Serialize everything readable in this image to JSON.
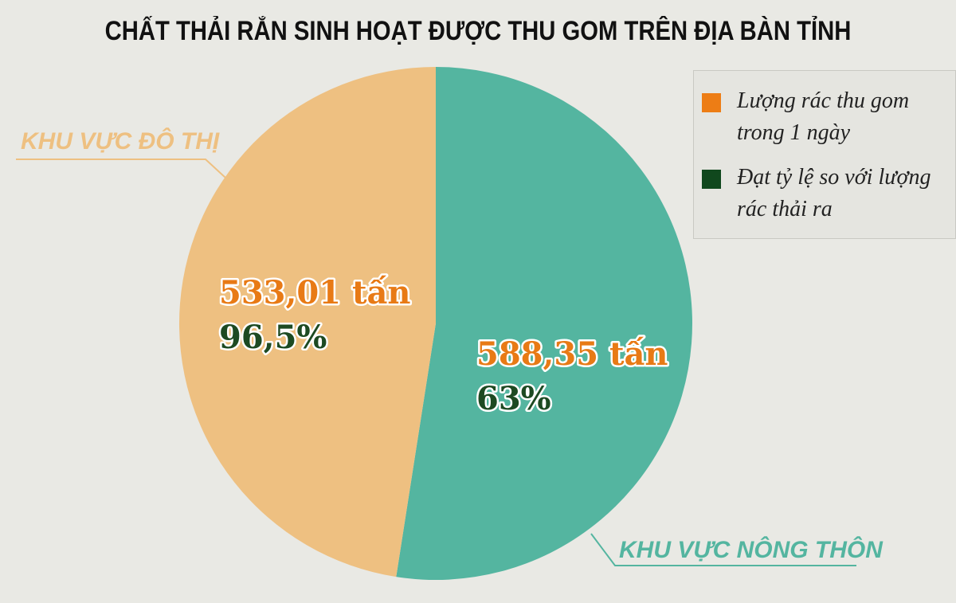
{
  "title": "CHẤT THẢI RẮN SINH HOẠT ĐƯỢC THU GOM TRÊN ĐỊA BÀN TỈNH",
  "colors": {
    "urban": "#eec081",
    "rural": "#54b5a0",
    "orange": "#e87a15",
    "darkgreen": "#1d4a22",
    "legend_orange": "#ed7d15",
    "legend_green": "#10481d"
  },
  "legend": [
    {
      "text": "Lượng rác thu gom trong 1 ngày"
    },
    {
      "text": "Đạt tỷ lệ so với lượng rác thải ra"
    }
  ],
  "chart_data": {
    "type": "pie",
    "title": "CHẤT THẢI RẮN SINH HOẠT ĐƯỢC THU GOM TRÊN ĐỊA BÀN TỈNH",
    "start": "12 o'clock, clockwise",
    "slices": [
      {
        "label": "KHU VỰC NÔNG THÔN",
        "value": 588.35,
        "value_label": "588,35 tấn",
        "rate_label": "63%"
      },
      {
        "label": "KHU VỰC ĐÔ THỊ",
        "value": 533.01,
        "value_label": "533,01 tấn",
        "rate_label": "96,5%"
      }
    ],
    "legend_position": "top-right"
  }
}
